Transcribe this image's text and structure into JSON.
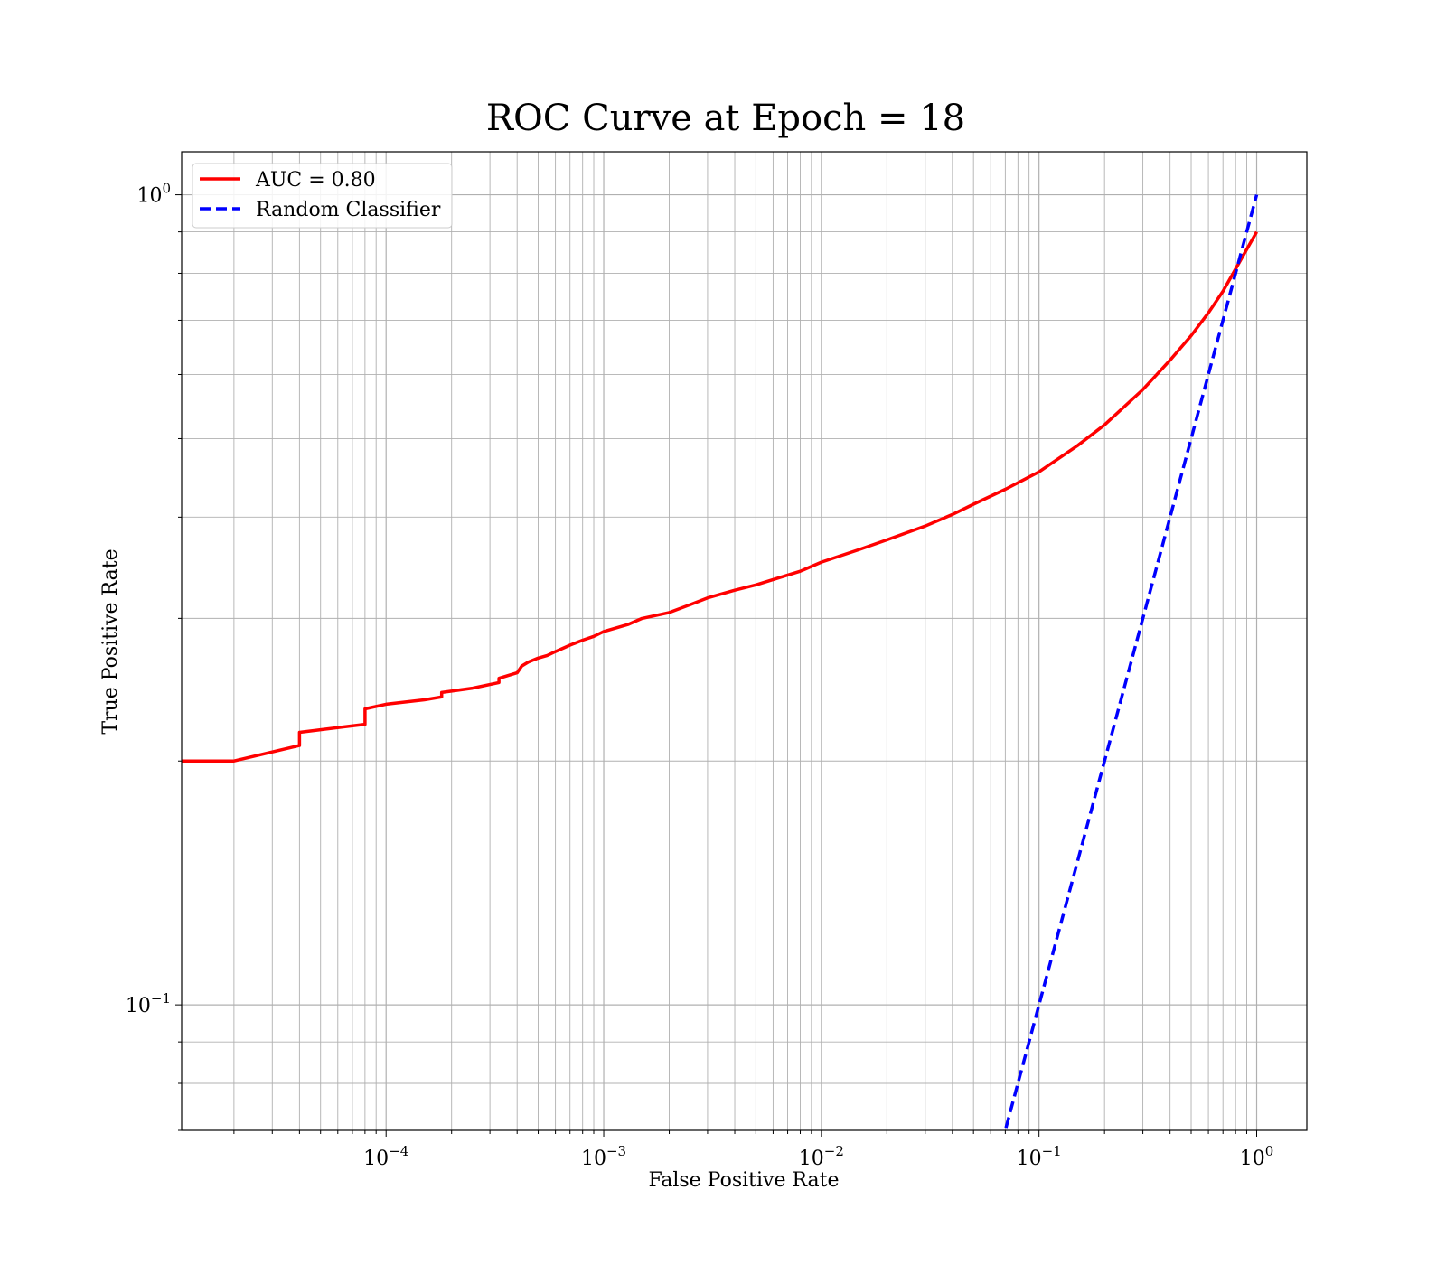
{
  "chart_data": {
    "type": "line",
    "title": "ROC Curve at Epoch = 18",
    "xlabel": "False Positive Rate",
    "ylabel": "True Positive Rate",
    "xscale": "log",
    "yscale": "log",
    "xlim": [
      1.15e-05,
      1.7
    ],
    "ylim": [
      0.07,
      1.13
    ],
    "grid": true,
    "grid_minor": true,
    "legend_placement": "upper-left",
    "x_ticks": [
      {
        "base": "10",
        "exp": "−4"
      },
      {
        "base": "10",
        "exp": "−3"
      },
      {
        "base": "10",
        "exp": "−2"
      },
      {
        "base": "10",
        "exp": "−1"
      },
      {
        "base": "10",
        "exp": "0"
      }
    ],
    "y_ticks": [
      {
        "base": "10",
        "exp": "−1"
      },
      {
        "base": "10",
        "exp": "0"
      }
    ],
    "series": [
      {
        "name": "AUC = 0.80",
        "color": "#ff0000",
        "line_style": "solid",
        "x": [
          1.15e-05,
          2e-05,
          4e-05,
          4e-05,
          8e-05,
          8e-05,
          0.0001,
          0.00015,
          0.00018,
          0.00018,
          0.00025,
          0.00033,
          0.00033,
          0.0004,
          0.00042,
          0.00045,
          0.0005,
          0.00055,
          0.0006,
          0.0007,
          0.0008,
          0.0009,
          0.001,
          0.0013,
          0.0015,
          0.002,
          0.0025,
          0.003,
          0.004,
          0.005,
          0.006,
          0.008,
          0.01,
          0.015,
          0.02,
          0.03,
          0.04,
          0.05,
          0.07,
          0.1,
          0.15,
          0.2,
          0.3,
          0.4,
          0.5,
          0.6,
          0.7,
          0.8,
          1.0
        ],
        "y": [
          0.2,
          0.2,
          0.209,
          0.217,
          0.222,
          0.232,
          0.235,
          0.238,
          0.24,
          0.243,
          0.246,
          0.25,
          0.253,
          0.257,
          0.262,
          0.265,
          0.268,
          0.27,
          0.273,
          0.278,
          0.282,
          0.285,
          0.289,
          0.295,
          0.3,
          0.305,
          0.312,
          0.318,
          0.325,
          0.33,
          0.335,
          0.343,
          0.352,
          0.365,
          0.375,
          0.39,
          0.403,
          0.415,
          0.433,
          0.455,
          0.49,
          0.52,
          0.575,
          0.625,
          0.67,
          0.715,
          0.76,
          0.81,
          0.9
        ]
      },
      {
        "name": "Random Classifier",
        "color": "#0000ff",
        "line_style": "dashed",
        "x": [
          0.0705,
          1.0
        ],
        "y": [
          0.0705,
          1.0
        ]
      }
    ]
  }
}
